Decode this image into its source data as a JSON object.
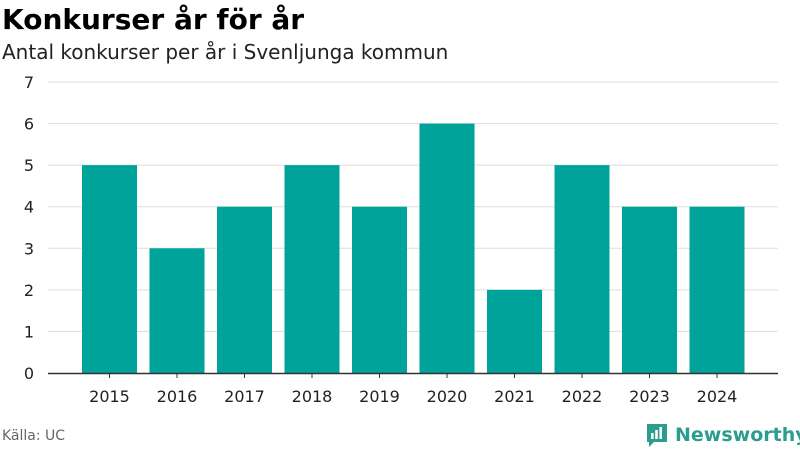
{
  "header": {
    "title": "Konkurser år för år",
    "subtitle": "Antal konkurser per år i Svenljunga kommun"
  },
  "footer": {
    "source": "Källa: UC",
    "brand": "Newsworthy",
    "brand_icon": "bar-chart-speech-bubble-icon"
  },
  "colors": {
    "bar": "#00a39a",
    "grid": "#dddddd",
    "axis": "#333333",
    "brand": "#2a9d8f"
  },
  "chart_data": {
    "type": "bar",
    "title": "Konkurser år för år",
    "subtitle": "Antal konkurser per år i Svenljunga kommun",
    "xlabel": "",
    "ylabel": "",
    "categories": [
      "2015",
      "2016",
      "2017",
      "2018",
      "2019",
      "2020",
      "2021",
      "2022",
      "2023",
      "2024"
    ],
    "values": [
      5,
      3,
      4,
      5,
      4,
      6,
      2,
      5,
      4,
      4
    ],
    "ylim": [
      0,
      7
    ],
    "yticks": [
      0,
      1,
      2,
      3,
      4,
      5,
      6,
      7
    ],
    "grid": true,
    "legend": "none"
  }
}
